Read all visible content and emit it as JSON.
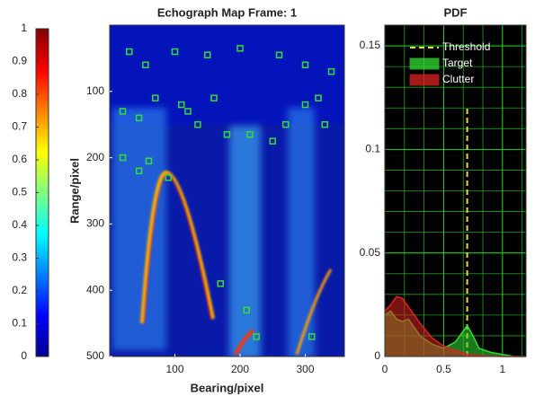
{
  "chart_data": [
    {
      "type": "colorbar",
      "ylim": [
        0,
        1
      ],
      "yticks": [
        0,
        0.1,
        0.2,
        0.3,
        0.4,
        0.5,
        0.6,
        0.7,
        0.8,
        0.9,
        1
      ],
      "colormap": "jet"
    },
    {
      "type": "image",
      "title": "Echograph Map Frame: 1",
      "xlabel": "Bearing/pixel",
      "ylabel": "Range/pixel",
      "xlim": [
        0,
        360
      ],
      "xticks": [
        100,
        200,
        300
      ],
      "ylim": [
        0,
        500
      ],
      "yticks": [
        100,
        200,
        300,
        400,
        500
      ],
      "y_reversed": true,
      "series": [
        {
          "name": "Detections",
          "color": "#33dd33",
          "x": [
            30,
            55,
            100,
            150,
            200,
            260,
            300,
            340,
            20,
            45,
            70,
            120,
            135,
            160,
            180,
            215,
            250,
            270,
            300,
            320,
            330,
            20,
            60,
            90,
            170,
            210,
            225,
            310,
            45,
            110
          ],
          "values": [
            40,
            60,
            40,
            45,
            35,
            45,
            60,
            70,
            130,
            140,
            110,
            130,
            150,
            110,
            165,
            165,
            175,
            150,
            120,
            110,
            150,
            200,
            205,
            230,
            390,
            430,
            470,
            470,
            220,
            120
          ]
        }
      ]
    },
    {
      "type": "line",
      "title": "PDF",
      "xlim": [
        0,
        1.2
      ],
      "xticks": [
        0,
        0.5,
        1
      ],
      "ylim": [
        0,
        0.16
      ],
      "yticks": [
        0,
        0.05,
        0.1,
        0.15
      ],
      "grid": true,
      "background": "#000000",
      "grid_color": "#22cc22",
      "legend": "top",
      "x": [
        0,
        0.05,
        0.1,
        0.15,
        0.2,
        0.3,
        0.4,
        0.5,
        0.6,
        0.65,
        0.7,
        0.75,
        0.8,
        0.9,
        1,
        1.1,
        1.2
      ],
      "series": [
        {
          "name": "Threshold",
          "color": "#e6d84a",
          "style": "dashed",
          "x": [
            0.7,
            0.7
          ],
          "values": [
            0,
            0.12
          ]
        },
        {
          "name": "Target",
          "color": "#33dd33",
          "style": "area",
          "values": [
            0.02,
            0.022,
            0.018,
            0.017,
            0.018,
            0.01,
            0.006,
            0.004,
            0.007,
            0.011,
            0.015,
            0.01,
            0.004,
            0.002,
            0.001,
            0,
            0
          ]
        },
        {
          "name": "Clutter",
          "color": "#dd2222",
          "style": "area",
          "values": [
            0.022,
            0.025,
            0.029,
            0.028,
            0.024,
            0.016,
            0.009,
            0.005,
            0.003,
            0.002,
            0.001,
            0.0007,
            0.0005,
            0.0002,
            0,
            0,
            0
          ]
        }
      ]
    }
  ]
}
